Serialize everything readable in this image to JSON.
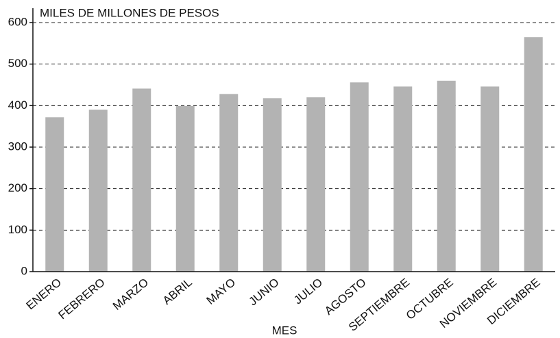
{
  "chart_data": {
    "type": "bar",
    "y_label": "MILES DE MILLONES DE PESOS",
    "x_label": "MES",
    "categories": [
      "ENERO",
      "FEBRERO",
      "MARZO",
      "ABRIL",
      "MAYO",
      "JUNIO",
      "JULIO",
      "AGOSTO",
      "SEPTIEMBRE",
      "OCTUBRE",
      "NOVIEMBRE",
      "DICIEMBRE"
    ],
    "values": [
      372,
      390,
      441,
      399,
      428,
      418,
      420,
      456,
      446,
      460,
      446,
      565
    ],
    "color": "#b3b3b3",
    "ylim": [
      0,
      600
    ],
    "yticks": [
      0,
      100,
      200,
      300,
      400,
      500,
      600
    ],
    "grid": true
  }
}
